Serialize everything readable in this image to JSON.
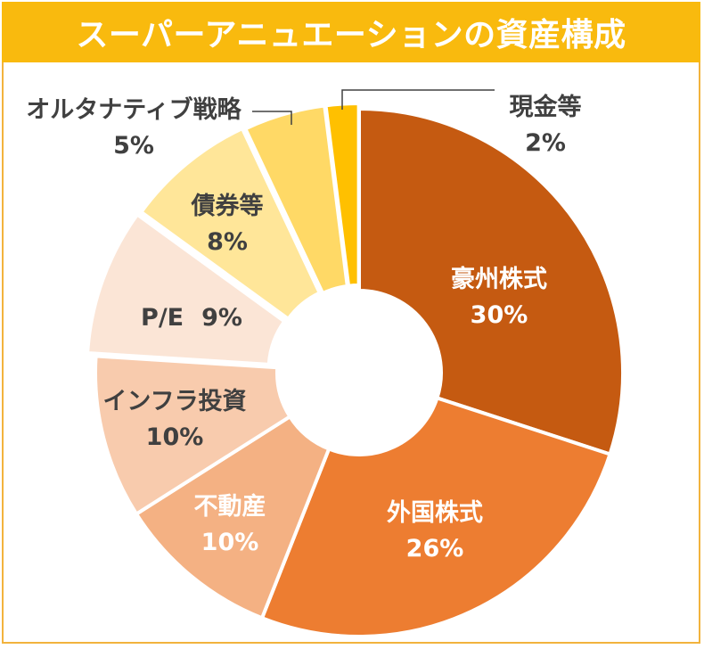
{
  "title": "スーパーアニュエーションの資産構成",
  "chart_data": {
    "type": "pie",
    "donut": true,
    "title": "スーパーアニュエーションの資産構成",
    "unit": "%",
    "categories": [
      "豪州株式",
      "外国株式",
      "不動産",
      "インフラ投資",
      "P/E",
      "債券等",
      "オルタナティブ戦略",
      "現金等"
    ],
    "values": [
      30,
      26,
      10,
      10,
      9,
      8,
      5,
      2
    ],
    "value_labels": [
      "30%",
      "26%",
      "10%",
      "10%",
      "9%",
      "8%",
      "5%",
      "2%"
    ],
    "colors": [
      "#c55a11",
      "#ed7d31",
      "#f4b183",
      "#f8cbad",
      "#fbe5d6",
      "#ffe699",
      "#ffd966",
      "#ffc000"
    ],
    "label_colors": [
      "#ffffff",
      "#ffffff",
      "#ffffff",
      "#404040",
      "#404040",
      "#404040",
      "#404040",
      "#404040"
    ],
    "title_color": "#f9ba0e",
    "start": "12 o'clock",
    "direction": "clockwise"
  }
}
